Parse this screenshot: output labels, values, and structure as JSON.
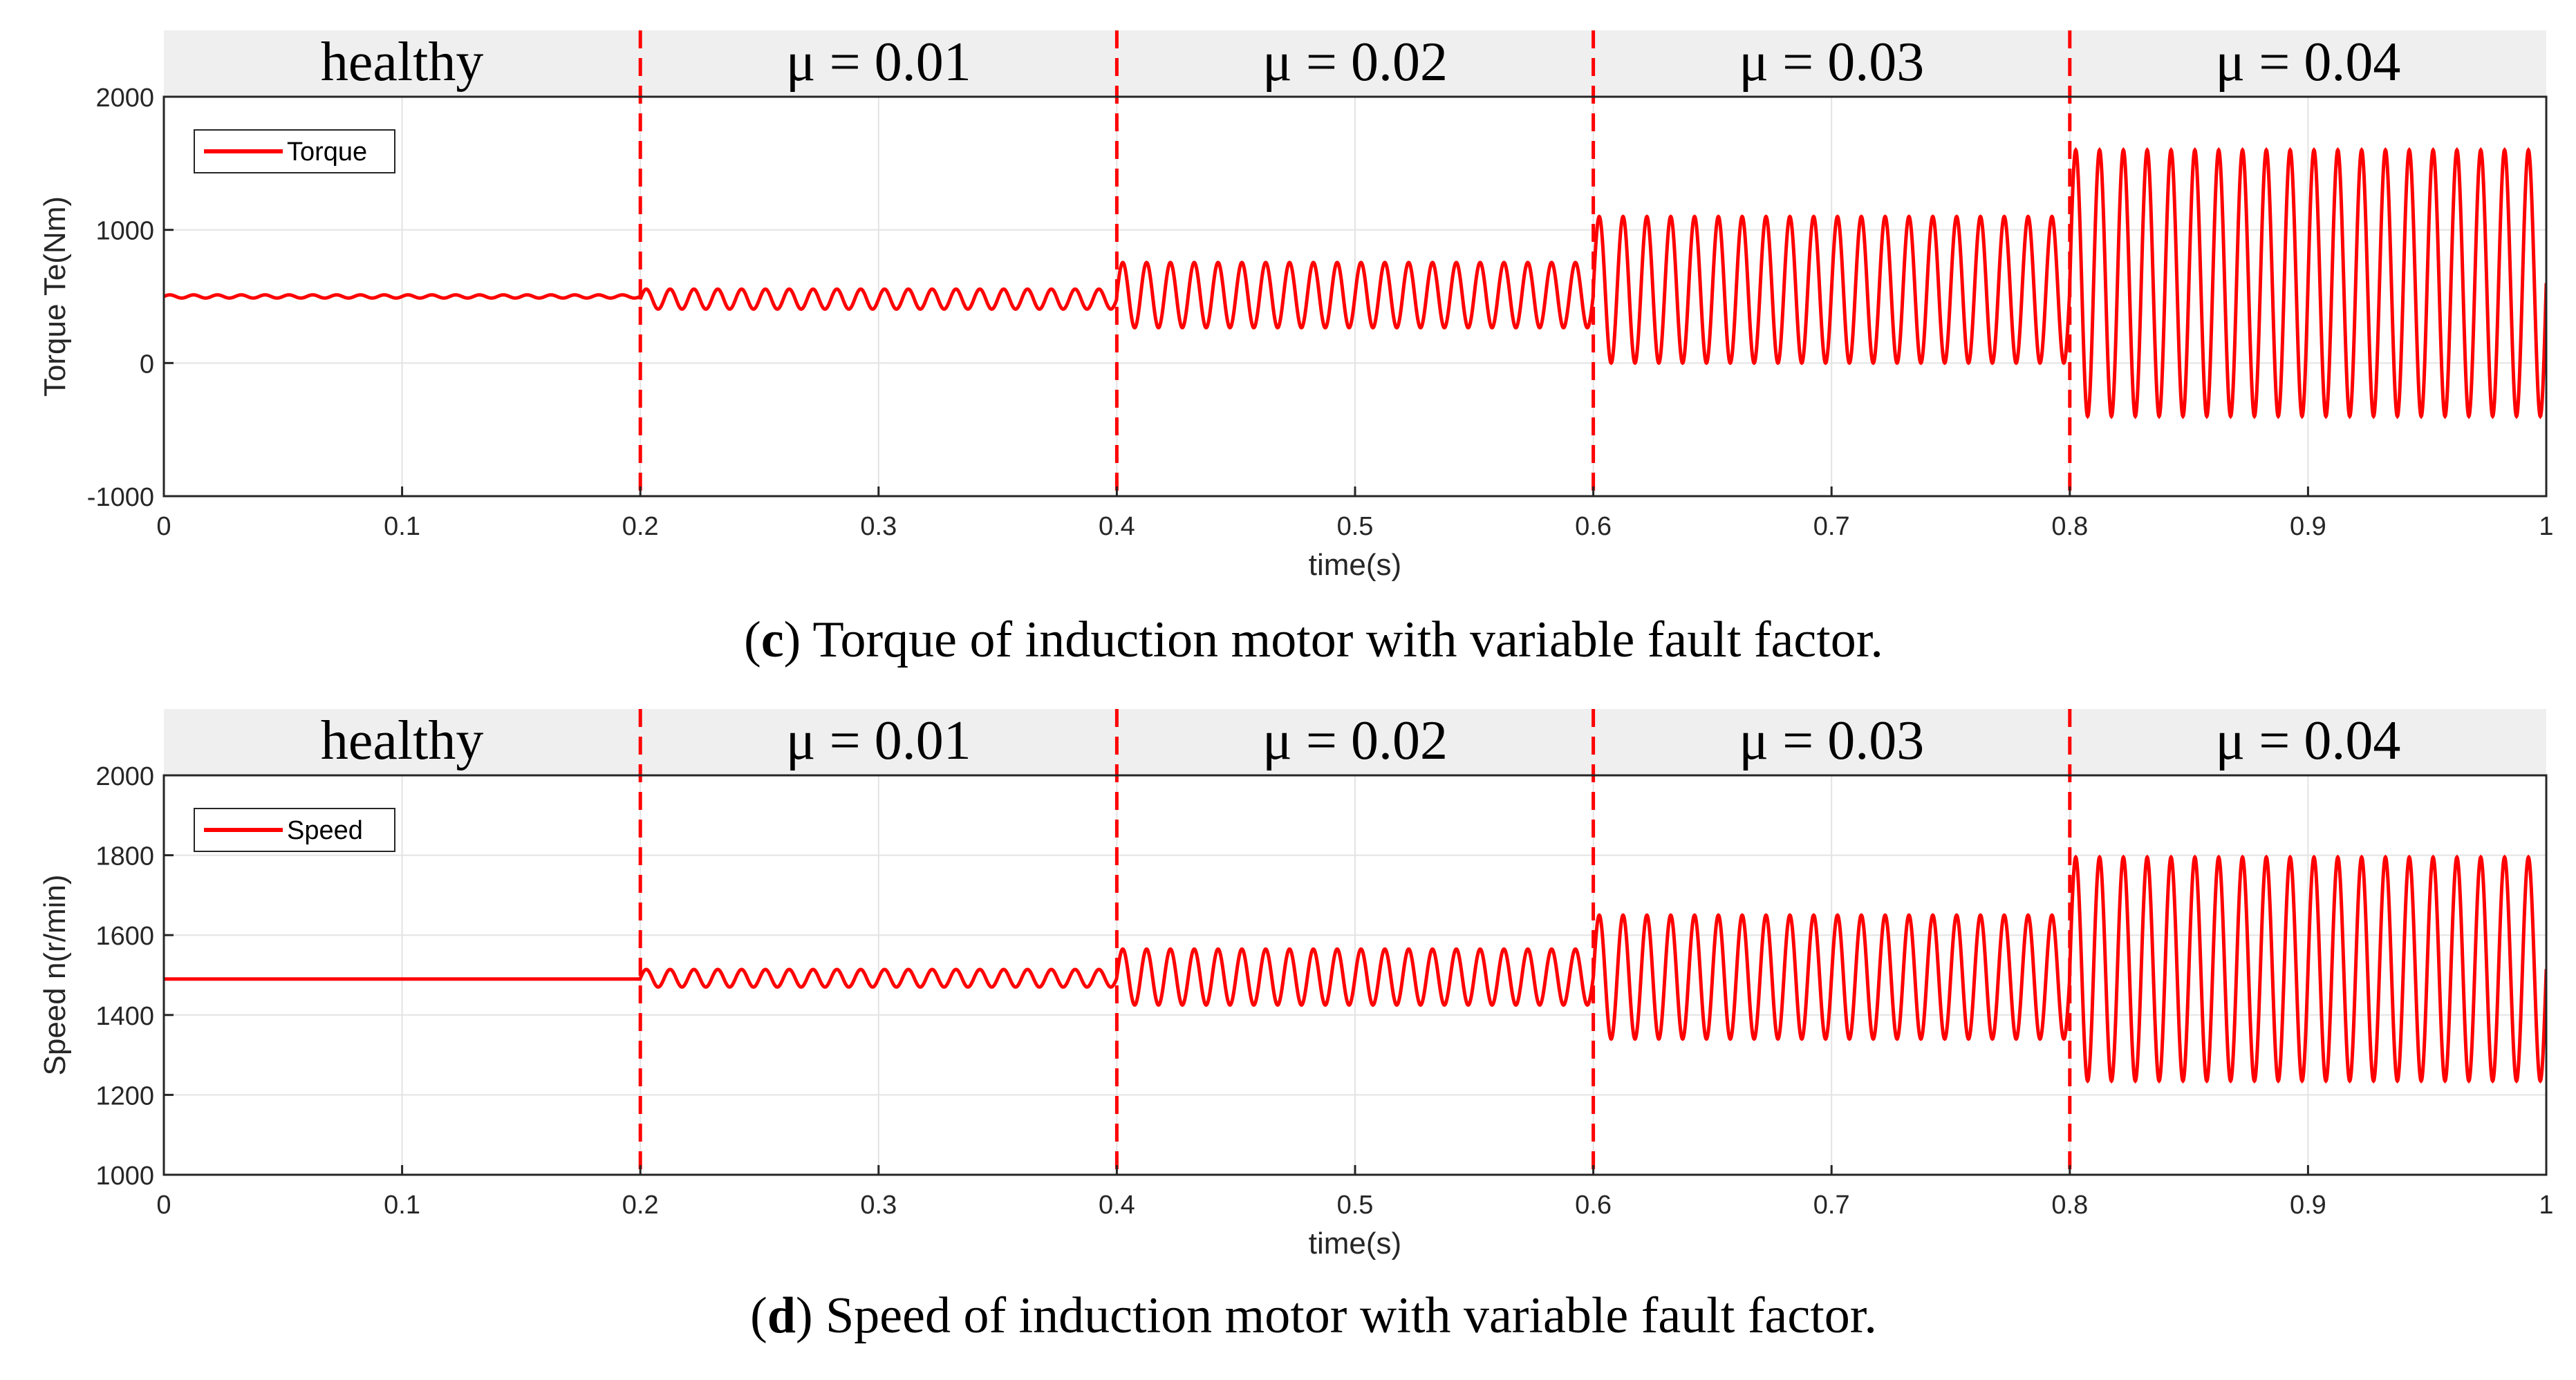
{
  "colors": {
    "signal": "#ff0000",
    "band": "#efefef",
    "grid": "#e3e3e3",
    "axis": "#262626"
  },
  "chart_data": [
    {
      "type": "line",
      "id": "c",
      "caption_letter": "c",
      "caption_text": ") Torque of induction motor with variable fault factor.",
      "caption_open": "(",
      "xlabel": "time(s)",
      "ylabel": "Torque Te(Nm)",
      "xlim": [
        0,
        1
      ],
      "ylim": [
        -1000,
        2000
      ],
      "xticks": [
        0,
        0.1,
        0.2,
        0.3,
        0.4,
        0.5,
        0.6,
        0.7,
        0.8,
        0.9,
        1
      ],
      "xtick_labels": [
        "0",
        "0.1",
        "0.2",
        "0.3",
        "0.4",
        "0.5",
        "0.6",
        "0.7",
        "0.8",
        "0.9",
        "1"
      ],
      "yticks": [
        -1000,
        0,
        1000,
        2000
      ],
      "ytick_labels": [
        "-1000",
        "0",
        "1000",
        "2000"
      ],
      "grid": true,
      "legend": {
        "label": "Torque",
        "position": "top-left"
      },
      "fault_lines": [
        0.2,
        0.4,
        0.6,
        0.8
      ],
      "segments": [
        {
          "label": "healthy",
          "start": 0.0,
          "end": 0.2,
          "mean": 500,
          "amplitude": 12,
          "frequency_hz": 100
        },
        {
          "label": "μ = 0.01",
          "start": 0.2,
          "end": 0.4,
          "mean": 480,
          "amplitude": 75,
          "frequency_hz": 100
        },
        {
          "label": "μ = 0.02",
          "start": 0.4,
          "end": 0.6,
          "mean": 510,
          "amplitude": 245,
          "frequency_hz": 100
        },
        {
          "label": "μ = 0.03",
          "start": 0.6,
          "end": 0.8,
          "mean": 550,
          "amplitude": 550,
          "frequency_hz": 100
        },
        {
          "label": "μ = 0.04",
          "start": 0.8,
          "end": 1.0,
          "mean": 600,
          "amplitude": 1000,
          "frequency_hz": 100
        }
      ]
    },
    {
      "type": "line",
      "id": "d",
      "caption_letter": "d",
      "caption_text": ") Speed of induction motor with variable fault factor.",
      "caption_open": "(",
      "xlabel": "time(s)",
      "ylabel": "Speed n(r/min)",
      "xlim": [
        0,
        1
      ],
      "ylim": [
        1000,
        2000
      ],
      "xticks": [
        0,
        0.1,
        0.2,
        0.3,
        0.4,
        0.5,
        0.6,
        0.7,
        0.8,
        0.9,
        1
      ],
      "xtick_labels": [
        "0",
        "0.1",
        "0.2",
        "0.3",
        "0.4",
        "0.5",
        "0.6",
        "0.7",
        "0.8",
        "0.9",
        "1"
      ],
      "yticks": [
        1000,
        1200,
        1400,
        1600,
        1800,
        2000
      ],
      "ytick_labels": [
        "1000",
        "1200",
        "1400",
        "1600",
        "1800",
        "2000"
      ],
      "grid": true,
      "legend": {
        "label": "Speed",
        "position": "top-left"
      },
      "fault_lines": [
        0.2,
        0.4,
        0.6,
        0.8
      ],
      "segments": [
        {
          "label": "healthy",
          "start": 0.0,
          "end": 0.2,
          "mean": 1490,
          "amplitude": 0,
          "frequency_hz": 100
        },
        {
          "label": "μ = 0.01",
          "start": 0.2,
          "end": 0.4,
          "mean": 1492,
          "amplitude": 22,
          "frequency_hz": 100
        },
        {
          "label": "μ = 0.02",
          "start": 0.4,
          "end": 0.6,
          "mean": 1495,
          "amplitude": 70,
          "frequency_hz": 100
        },
        {
          "label": "μ = 0.03",
          "start": 0.6,
          "end": 0.8,
          "mean": 1495,
          "amplitude": 155,
          "frequency_hz": 100
        },
        {
          "label": "μ = 0.04",
          "start": 0.8,
          "end": 1.0,
          "mean": 1515,
          "amplitude": 280,
          "frequency_hz": 100
        }
      ]
    }
  ]
}
